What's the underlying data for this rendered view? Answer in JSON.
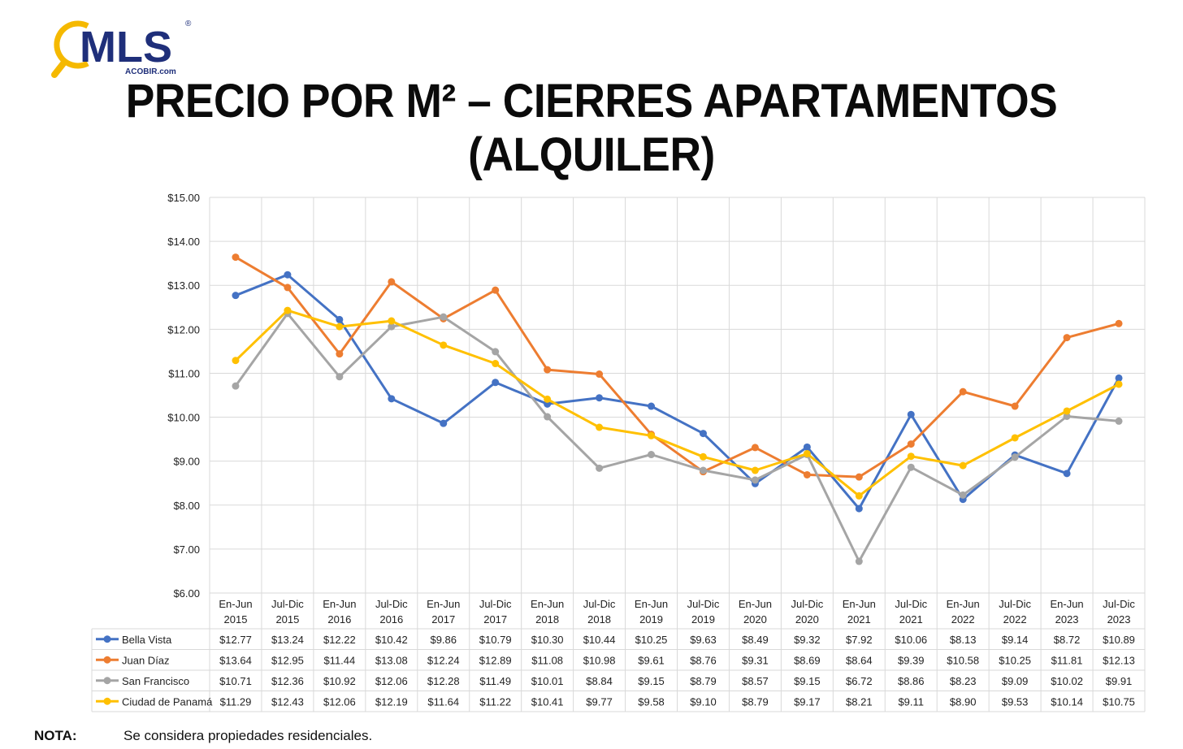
{
  "logo": {
    "brand": "MLS",
    "registered": "®",
    "sub": "ACOBIR.com"
  },
  "title": {
    "line1": "PRECIO POR M² – CIERRES APARTAMENTOS",
    "line2": "(ALQUILER)"
  },
  "note": {
    "label": "NOTA:",
    "text": "Se considera propiedades residenciales."
  },
  "chart_data": {
    "type": "line",
    "title": "PRECIO POR M² – CIERRES APARTAMENTOS (ALQUILER)",
    "xlabel": "",
    "ylabel": "",
    "ylim": [
      6,
      15
    ],
    "y_ticks": [
      "$15.00",
      "$14.00",
      "$13.00",
      "$12.00",
      "$11.00",
      "$10.00",
      "$9.00",
      "$8.00",
      "$7.00",
      "$6.00"
    ],
    "grid": true,
    "legend": "data-table",
    "categories": [
      [
        "En-Jun",
        "2015"
      ],
      [
        "Jul-Dic",
        "2015"
      ],
      [
        "En-Jun",
        "2016"
      ],
      [
        "Jul-Dic",
        "2016"
      ],
      [
        "En-Jun",
        "2017"
      ],
      [
        "Jul-Dic",
        "2017"
      ],
      [
        "En-Jun",
        "2018"
      ],
      [
        "Jul-Dic",
        "2018"
      ],
      [
        "En-Jun",
        "2019"
      ],
      [
        "Jul-Dic",
        "2019"
      ],
      [
        "En-Jun",
        "2020"
      ],
      [
        "Jul-Dic",
        "2020"
      ],
      [
        "En-Jun",
        "2021"
      ],
      [
        "Jul-Dic",
        "2021"
      ],
      [
        "En-Jun",
        "2022"
      ],
      [
        "Jul-Dic",
        "2022"
      ],
      [
        "En-Jun",
        "2023"
      ],
      [
        "Jul-Dic",
        "2023"
      ]
    ],
    "series": [
      {
        "name": "Bella Vista",
        "color": "#4472C4",
        "values": [
          12.77,
          13.24,
          12.22,
          10.42,
          9.86,
          10.79,
          10.3,
          10.44,
          10.25,
          9.63,
          8.49,
          9.32,
          7.92,
          10.06,
          8.13,
          9.14,
          8.72,
          10.89
        ],
        "labels": [
          "$12.77",
          "$13.24",
          "$12.22",
          "$10.42",
          "$9.86",
          "$10.79",
          "$10.30",
          "$10.44",
          "$10.25",
          "$9.63",
          "$8.49",
          "$9.32",
          "$7.92",
          "$10.06",
          "$8.13",
          "$9.14",
          "$8.72",
          "$10.89"
        ]
      },
      {
        "name": "Juan Díaz",
        "color": "#ED7D31",
        "values": [
          13.64,
          12.95,
          11.44,
          13.08,
          12.24,
          12.89,
          11.08,
          10.98,
          9.61,
          8.76,
          9.31,
          8.69,
          8.64,
          9.39,
          10.58,
          10.25,
          11.81,
          12.13
        ],
        "labels": [
          "$13.64",
          "$12.95",
          "$11.44",
          "$13.08",
          "$12.24",
          "$12.89",
          "$11.08",
          "$10.98",
          "$9.61",
          "$8.76",
          "$9.31",
          "$8.69",
          "$8.64",
          "$9.39",
          "$10.58",
          "$10.25",
          "$11.81",
          "$12.13"
        ]
      },
      {
        "name": "San Francisco",
        "color": "#A5A5A5",
        "values": [
          10.71,
          12.36,
          10.92,
          12.06,
          12.28,
          11.49,
          10.01,
          8.84,
          9.15,
          8.79,
          8.57,
          9.15,
          6.72,
          8.86,
          8.23,
          9.09,
          10.02,
          9.91
        ],
        "labels": [
          "$10.71",
          "$12.36",
          "$10.92",
          "$12.06",
          "$12.28",
          "$11.49",
          "$10.01",
          "$8.84",
          "$9.15",
          "$8.79",
          "$8.57",
          "$9.15",
          "$6.72",
          "$8.86",
          "$8.23",
          "$9.09",
          "$10.02",
          "$9.91"
        ]
      },
      {
        "name": "Ciudad de Panamá",
        "color": "#FFC000",
        "values": [
          11.29,
          12.43,
          12.06,
          12.19,
          11.64,
          11.22,
          10.41,
          9.77,
          9.58,
          9.1,
          8.79,
          9.17,
          8.21,
          9.11,
          8.9,
          9.53,
          10.14,
          10.75
        ],
        "labels": [
          "$11.29",
          "$12.43",
          "$12.06",
          "$12.19",
          "$11.64",
          "$11.22",
          "$10.41",
          "$9.77",
          "$9.58",
          "$9.10",
          "$8.79",
          "$9.17",
          "$8.21",
          "$9.11",
          "$8.90",
          "$9.53",
          "$10.14",
          "$10.75"
        ]
      }
    ]
  }
}
